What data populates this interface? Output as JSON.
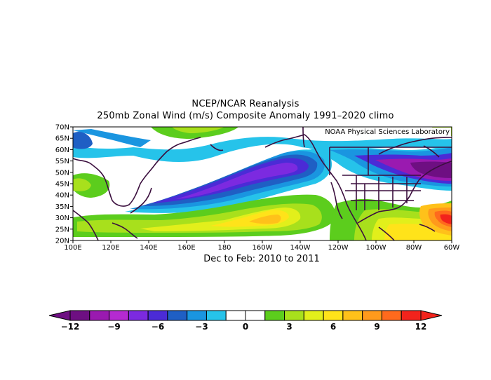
{
  "title": {
    "line1": "NCEP/NCAR Reanalysis",
    "line2": "250mb Zonal Wind (m/s) Composite Anomaly 1991–2020 climo"
  },
  "credit": "NOAA Physical Sciences Laboratory",
  "subtitle": "Dec to Feb: 2010 to 2011",
  "map": {
    "lat_ticks": [
      "70N",
      "65N",
      "60N",
      "55N",
      "50N",
      "45N",
      "40N",
      "35N",
      "30N",
      "25N",
      "20N"
    ],
    "lon_ticks": [
      "100E",
      "120E",
      "140E",
      "160E",
      "180",
      "160W",
      "140W",
      "120W",
      "100W",
      "80W",
      "60W"
    ]
  },
  "colorbar": {
    "colors": [
      "#6e0f82",
      "#9a1ab0",
      "#b52ad1",
      "#7c2ae0",
      "#4b2bd6",
      "#1f5fc4",
      "#1a95e0",
      "#26c3ea",
      "#ffffff",
      "#ffffff",
      "#5ccd1d",
      "#a8e01c",
      "#e2ef1b",
      "#ffe31a",
      "#ffc11a",
      "#ff9a1c",
      "#ff6a1d",
      "#f2231c"
    ],
    "labels": [
      "−12",
      "−9",
      "−6",
      "−3",
      "0",
      "3",
      "6",
      "9",
      "12"
    ]
  }
}
